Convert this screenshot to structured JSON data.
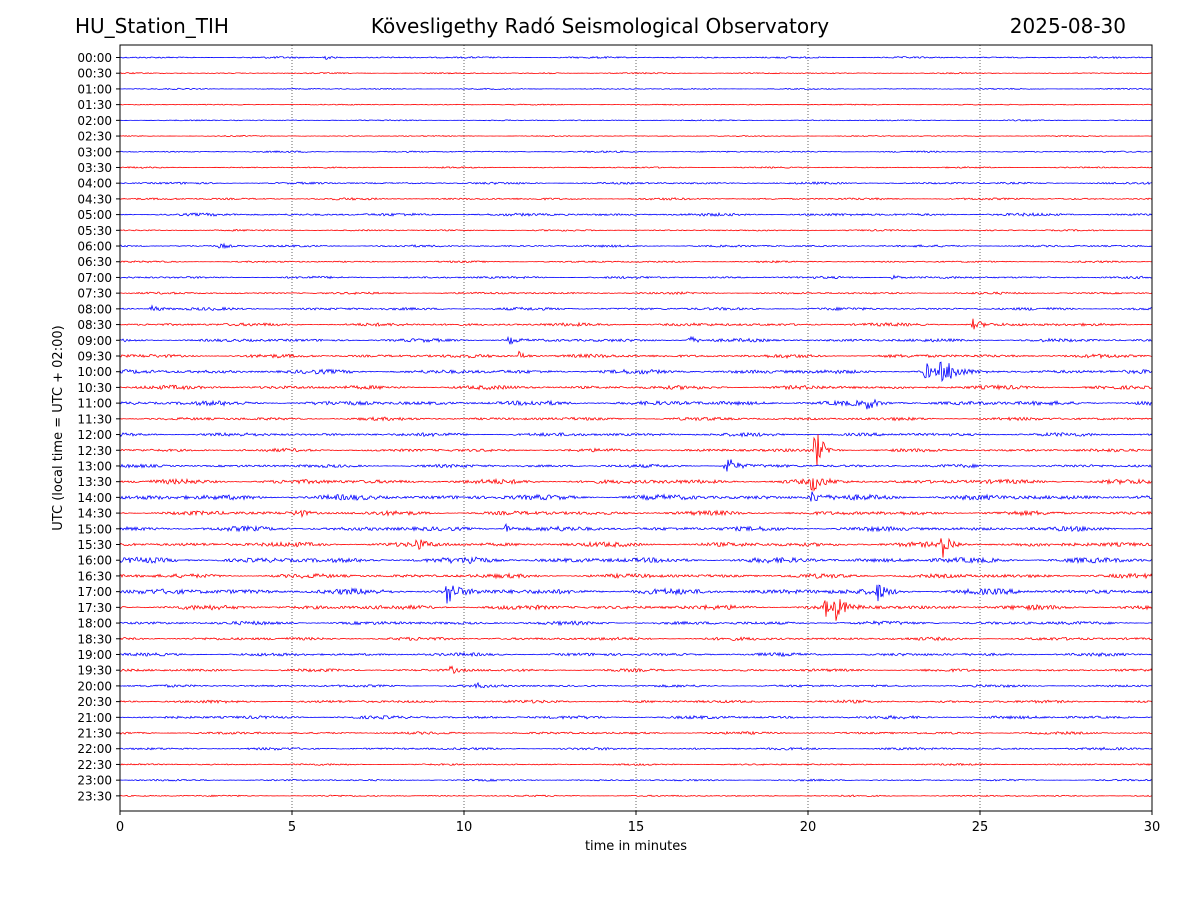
{
  "header": {
    "station": "HU_Station_TIH",
    "observatory": "Kövesligethy Radó Seismological Observatory",
    "date": "2025-08-30"
  },
  "chart_data": {
    "type": "line",
    "title": "Kövesligethy Radó Seismological Observatory",
    "xlabel": "time in minutes",
    "ylabel": "UTC (local time = UTC + 02:00)",
    "xlim": [
      0,
      30
    ],
    "xticks": [
      0,
      5,
      10,
      15,
      20,
      25,
      30
    ],
    "grid": "vertical dotted lines at 5-minute ticks",
    "row_labels": [
      "00:00",
      "00:30",
      "01:00",
      "01:30",
      "02:00",
      "02:30",
      "03:00",
      "03:30",
      "04:00",
      "04:30",
      "05:00",
      "05:30",
      "06:00",
      "06:30",
      "07:00",
      "07:30",
      "08:00",
      "08:30",
      "09:00",
      "09:30",
      "10:00",
      "10:30",
      "11:00",
      "11:30",
      "12:00",
      "12:30",
      "13:00",
      "13:30",
      "14:00",
      "14:30",
      "15:00",
      "15:30",
      "16:00",
      "16:30",
      "17:00",
      "17:30",
      "18:00",
      "18:30",
      "19:00",
      "19:30",
      "20:00",
      "20:30",
      "21:00",
      "21:30",
      "22:00",
      "22:30",
      "23:00",
      "23:30"
    ],
    "row_colors": [
      "#0000ff",
      "#ff0000"
    ],
    "noise_levels": [
      1.0,
      0.7,
      0.7,
      0.6,
      0.7,
      0.6,
      0.9,
      0.8,
      1.2,
      1.2,
      1.6,
      0.9,
      1.2,
      1.0,
      1.3,
      1.2,
      1.6,
      1.8,
      1.8,
      2.0,
      2.4,
      2.2,
      2.6,
      1.8,
      2.0,
      1.8,
      1.8,
      2.6,
      3.0,
      2.4,
      2.6,
      2.6,
      3.0,
      2.4,
      3.2,
      2.6,
      2.0,
      1.8,
      1.8,
      1.6,
      1.4,
      1.6,
      1.8,
      1.4,
      1.4,
      1.0,
      1.0,
      0.9
    ],
    "events": [
      {
        "row": "00:00",
        "minute": 5.9,
        "amplitude": 3
      },
      {
        "row": "00:30",
        "minute": 12.2,
        "amplitude": 2
      },
      {
        "row": "06:00",
        "minute": 2.9,
        "amplitude": 3
      },
      {
        "row": "07:00",
        "minute": 22.4,
        "amplitude": 4
      },
      {
        "row": "08:00",
        "minute": 0.9,
        "amplitude": 5
      },
      {
        "row": "08:30",
        "minute": 24.8,
        "amplitude": 6
      },
      {
        "row": "09:00",
        "minute": 16.5,
        "amplitude": 6
      },
      {
        "row": "09:00",
        "minute": 11.3,
        "amplitude": 4
      },
      {
        "row": "09:30",
        "minute": 11.6,
        "amplitude": 5
      },
      {
        "row": "10:00",
        "minute": 23.4,
        "amplitude": 9
      },
      {
        "row": "10:00",
        "minute": 23.8,
        "amplitude": 11
      },
      {
        "row": "10:00",
        "minute": 24.1,
        "amplitude": 7
      },
      {
        "row": "11:00",
        "minute": 21.7,
        "amplitude": 6
      },
      {
        "row": "12:30",
        "minute": 20.2,
        "amplitude": 24
      },
      {
        "row": "13:00",
        "minute": 17.6,
        "amplitude": 14
      },
      {
        "row": "13:30",
        "minute": 20.1,
        "amplitude": 10
      },
      {
        "row": "14:00",
        "minute": 20.1,
        "amplitude": 7
      },
      {
        "row": "14:30",
        "minute": 5.1,
        "amplitude": 6
      },
      {
        "row": "15:00",
        "minute": 11.2,
        "amplitude": 5
      },
      {
        "row": "15:30",
        "minute": 23.9,
        "amplitude": 14
      },
      {
        "row": "15:30",
        "minute": 8.6,
        "amplitude": 6
      },
      {
        "row": "16:00",
        "minute": 10.2,
        "amplitude": 5
      },
      {
        "row": "17:00",
        "minute": 9.5,
        "amplitude": 16
      },
      {
        "row": "17:00",
        "minute": 22.0,
        "amplitude": 9
      },
      {
        "row": "17:30",
        "minute": 20.5,
        "amplitude": 9
      },
      {
        "row": "17:30",
        "minute": 20.8,
        "amplitude": 11
      },
      {
        "row": "19:30",
        "minute": 9.6,
        "amplitude": 4
      },
      {
        "row": "20:00",
        "minute": 10.3,
        "amplitude": 3
      }
    ]
  }
}
